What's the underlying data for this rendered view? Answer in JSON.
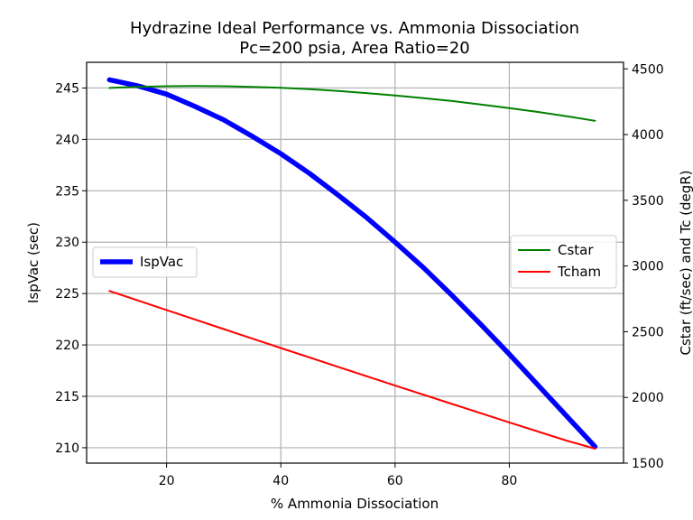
{
  "chart_data": {
    "type": "line",
    "title": "Hydrazine Ideal Performance vs. Ammonia Dissociation",
    "subtitle": "Pc=200 psia, Area Ratio=20",
    "xlabel": "% Ammonia Dissociation",
    "ylabel_left": "IspVac (sec)",
    "ylabel_right": "Cstar (ft/sec) and Tc (degR)",
    "xlim": [
      6,
      100
    ],
    "ylim_left": [
      208.5,
      247.5
    ],
    "ylim_right": [
      1500,
      4550
    ],
    "xticks": [
      20,
      40,
      60,
      80
    ],
    "yticks_left": [
      210,
      215,
      220,
      225,
      230,
      235,
      240,
      245
    ],
    "yticks_right": [
      1500,
      2000,
      2500,
      3000,
      3500,
      4000,
      4500
    ],
    "grid": true,
    "legend_left": {
      "placement": "center-left",
      "entries": [
        "IspVac"
      ]
    },
    "legend_right": {
      "placement": "center-right",
      "entries": [
        "Cstar",
        "Tcham"
      ]
    },
    "series": [
      {
        "name": "IspVac",
        "axis": "left",
        "color": "#0000ff",
        "x": [
          10,
          15,
          20,
          25,
          30,
          35,
          40,
          45,
          50,
          55,
          60,
          65,
          70,
          75,
          80,
          85,
          90,
          95
        ],
        "values": [
          245.8,
          245.2,
          244.4,
          243.2,
          241.9,
          240.3,
          238.6,
          236.7,
          234.6,
          232.4,
          230.0,
          227.5,
          224.8,
          222.0,
          219.1,
          216.1,
          213.1,
          210.1
        ]
      },
      {
        "name": "Cstar",
        "axis": "right",
        "color": "#008000",
        "x": [
          10,
          15,
          20,
          25,
          30,
          35,
          40,
          45,
          50,
          55,
          60,
          65,
          70,
          75,
          80,
          85,
          90,
          95
        ],
        "values": [
          4355,
          4363,
          4368,
          4369,
          4368,
          4363,
          4356,
          4345,
          4332,
          4316,
          4298,
          4277,
          4255,
          4229,
          4202,
          4172,
          4140,
          4105
        ]
      },
      {
        "name": "Tcham",
        "axis": "right",
        "color": "#ff0000",
        "x": [
          10,
          20,
          30,
          40,
          50,
          60,
          70,
          80,
          90,
          95
        ],
        "values": [
          2810,
          2665,
          2520,
          2376,
          2233,
          2090,
          1950,
          1810,
          1672,
          1610
        ]
      }
    ]
  }
}
